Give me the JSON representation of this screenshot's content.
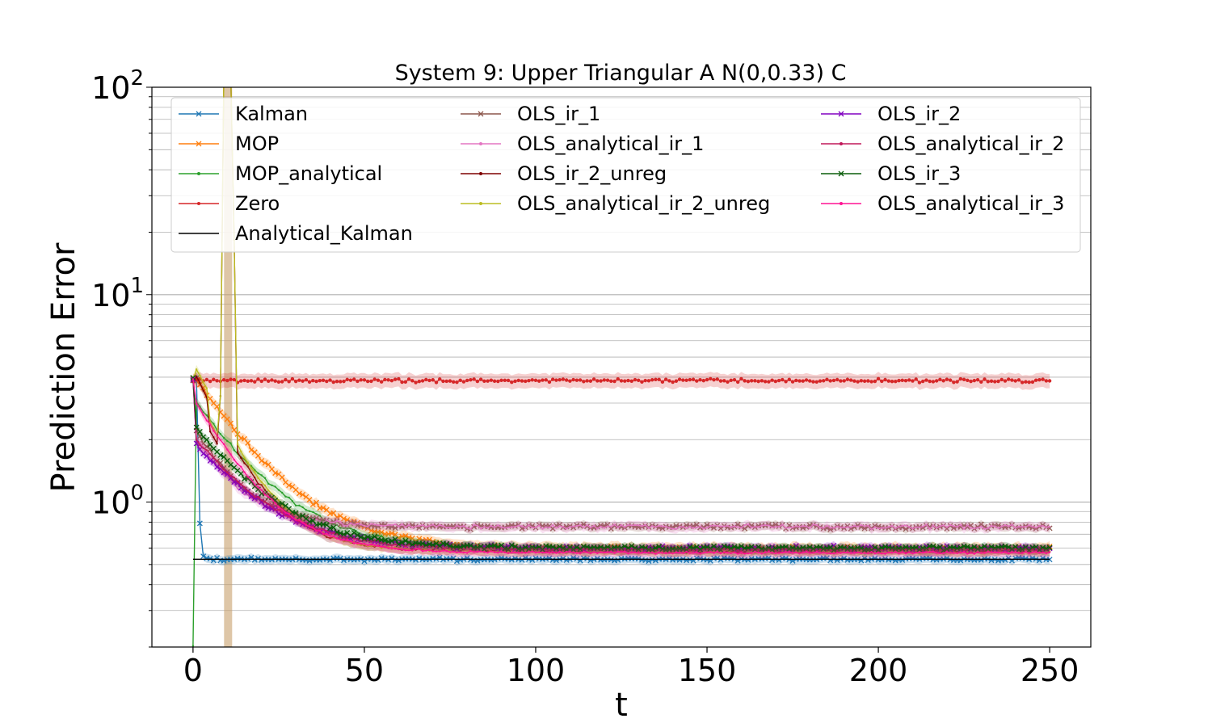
{
  "chart_data": {
    "type": "line",
    "title": "System 9: Upper Triangular A N(0,0.33) C",
    "xlabel": "t",
    "ylabel": "Prediction Error",
    "x_range": [
      -12,
      262
    ],
    "y_scale": "log",
    "y_range": [
      0.2,
      100
    ],
    "x_ticks": [
      0,
      50,
      100,
      150,
      200,
      250
    ],
    "x_tick_labels": [
      "0",
      "50",
      "100",
      "150",
      "200",
      "250"
    ],
    "y_ticks": [
      1,
      10,
      100
    ],
    "y_tick_labels": [
      {
        "base": "10",
        "exp": "0"
      },
      {
        "base": "10",
        "exp": "1"
      },
      {
        "base": "10",
        "exp": "2"
      }
    ],
    "grid": "y-major-and-minor",
    "legend_position": "top",
    "legend_columns": 3,
    "series": [
      {
        "name": "Kalman",
        "color": "#1f77b4",
        "marker": "x",
        "start": 3.9,
        "steady": 0.53,
        "tau": 0.4,
        "noise": 0.015,
        "band": 0.05
      },
      {
        "name": "MOP",
        "color": "#ff7f0e",
        "marker": "x",
        "start": 3.9,
        "peak": 3.9,
        "steady": 0.6,
        "tau": 16,
        "noise": 0.02,
        "band": 0.06
      },
      {
        "name": "MOP_analytical",
        "color": "#2ca02c",
        "marker": "dot",
        "start": 0.2,
        "peak": 3.0,
        "steady": 0.59,
        "tau": 16,
        "noise": 0.015,
        "band": 0.05
      },
      {
        "name": "Zero",
        "color": "#d62728",
        "marker": "dot",
        "start": 3.85,
        "steady": 3.85,
        "tau": 1,
        "noise": 0.015,
        "band": 0.08
      },
      {
        "name": "Analytical_Kalman",
        "color": "#000000",
        "marker": "none",
        "start": 0.53,
        "steady": 0.53,
        "tau": 1,
        "noise": 0,
        "band": 0
      },
      {
        "name": "OLS_ir_1",
        "color": "#8c564b",
        "marker": "x",
        "start": 3.9,
        "peak": 2.2,
        "steady": 0.76,
        "tau": 11,
        "noise": 0.02,
        "band": 0.05
      },
      {
        "name": "OLS_analytical_ir_1",
        "color": "#e377c2",
        "marker": "dot",
        "start": 3.9,
        "peak": 2.0,
        "steady": 0.76,
        "tau": 11,
        "noise": 0.02,
        "band": 0.05
      },
      {
        "name": "OLS_ir_2_unreg",
        "color": "#7f0000",
        "marker": "dot",
        "start": 3.8,
        "peak": 4.0,
        "steady": 0.58,
        "tau": 11,
        "noise": 0.015,
        "band": 0.05,
        "spike": 120
      },
      {
        "name": "OLS_analytical_ir_2_unreg",
        "color": "#bcbd22",
        "marker": "dot",
        "start": 3.8,
        "peak": 4.4,
        "steady": 0.58,
        "tau": 11,
        "noise": 0.015,
        "band": 0.05,
        "spike": 120
      },
      {
        "name": "OLS_ir_2",
        "color": "#8000c0",
        "marker": "x",
        "start": 3.9,
        "peak": 1.9,
        "steady": 0.6,
        "tau": 16,
        "noise": 0.02,
        "band": 0.05
      },
      {
        "name": "OLS_analytical_ir_2",
        "color": "#c0185a",
        "marker": "dot",
        "start": 3.9,
        "peak": 2.0,
        "steady": 0.59,
        "tau": 16,
        "noise": 0.015,
        "band": 0.05
      },
      {
        "name": "OLS_ir_3",
        "color": "#0a5d0a",
        "marker": "x",
        "start": 3.9,
        "peak": 2.3,
        "steady": 0.6,
        "tau": 16,
        "noise": 0.02,
        "band": 0.05
      },
      {
        "name": "OLS_analytical_ir_3",
        "color": "#ff1493",
        "marker": "dot",
        "start": 3.9,
        "peak": 3.0,
        "steady": 0.57,
        "tau": 13,
        "noise": 0.01,
        "band": 0.05
      }
    ]
  }
}
